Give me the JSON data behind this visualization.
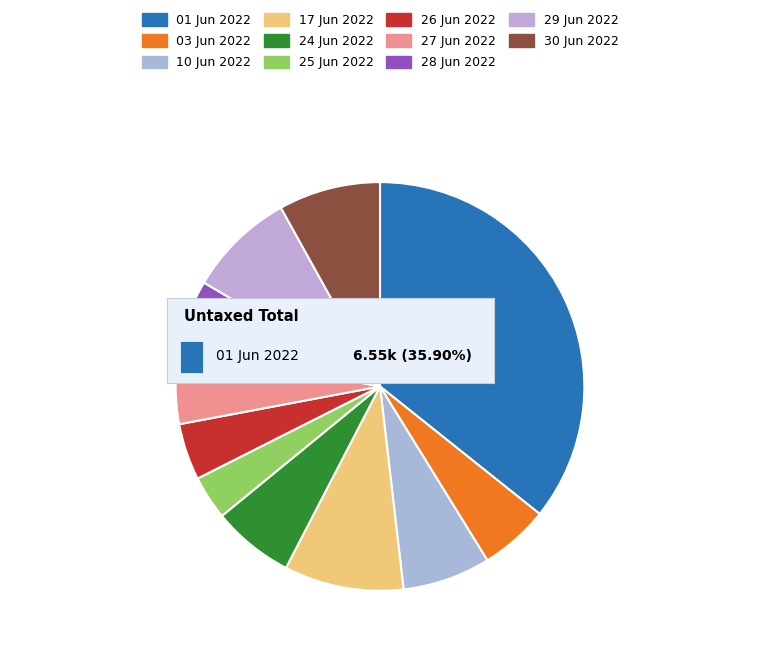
{
  "labels": [
    "01 Jun 2022",
    "03 Jun 2022",
    "10 Jun 2022",
    "17 Jun 2022",
    "24 Jun 2022",
    "25 Jun 2022",
    "26 Jun 2022",
    "27 Jun 2022",
    "28 Jun 2022",
    "29 Jun 2022",
    "30 Jun 2022"
  ],
  "percentages": [
    35.9,
    5.5,
    7.0,
    9.5,
    6.5,
    3.5,
    4.5,
    6.0,
    5.5,
    8.5,
    8.1
  ],
  "colors": [
    "#2874b8",
    "#f07820",
    "#a8b8d8",
    "#f0c878",
    "#2e9030",
    "#90d060",
    "#c83030",
    "#f09090",
    "#9050c0",
    "#c0a8d8",
    "#8c5040"
  ],
  "tooltip_title": "Untaxed Total",
  "tooltip_label": "01 Jun 2022",
  "tooltip_value": "6.55k (35.90%)",
  "tooltip_color": "#2874b8",
  "bg_color": "#ffffff",
  "legend_ncol_row1": 4,
  "legend_ncol_row2": 4,
  "legend_ncol_row3": 3
}
